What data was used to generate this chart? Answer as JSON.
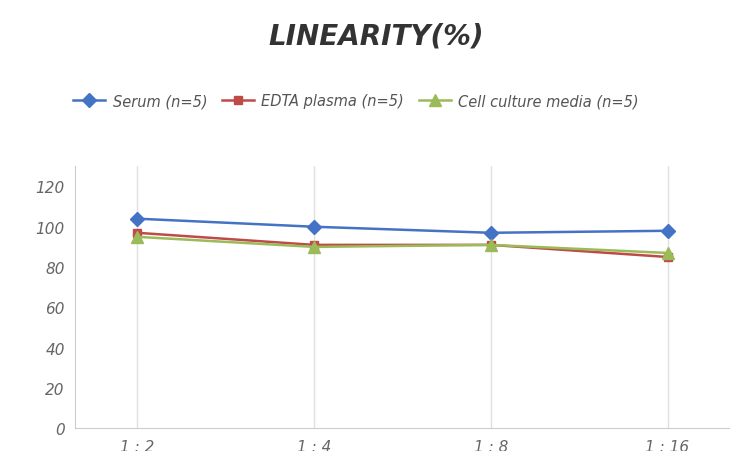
{
  "title": "LINEARITY(%)",
  "x_labels": [
    "1 : 2",
    "1 : 4",
    "1 : 8",
    "1 : 16"
  ],
  "x_positions": [
    0,
    1,
    2,
    3
  ],
  "series": [
    {
      "label": "Serum (n=5)",
      "values": [
        104,
        100,
        97,
        98
      ],
      "color": "#4472C4",
      "marker": "D",
      "marker_size": 7,
      "linewidth": 1.8
    },
    {
      "label": "EDTA plasma (n=5)",
      "values": [
        97,
        91,
        91,
        85
      ],
      "color": "#BE4B48",
      "marker": "s",
      "marker_size": 6,
      "linewidth": 1.8
    },
    {
      "label": "Cell culture media (n=5)",
      "values": [
        95,
        90,
        91,
        87
      ],
      "color": "#9BBB59",
      "marker": "^",
      "marker_size": 8,
      "linewidth": 1.8
    }
  ],
  "ylim": [
    0,
    130
  ],
  "yticks": [
    0,
    20,
    40,
    60,
    80,
    100,
    120
  ],
  "grid_color": "#E0E0E0",
  "background_color": "#FFFFFF",
  "title_fontsize": 20,
  "legend_fontsize": 10.5,
  "tick_fontsize": 11
}
